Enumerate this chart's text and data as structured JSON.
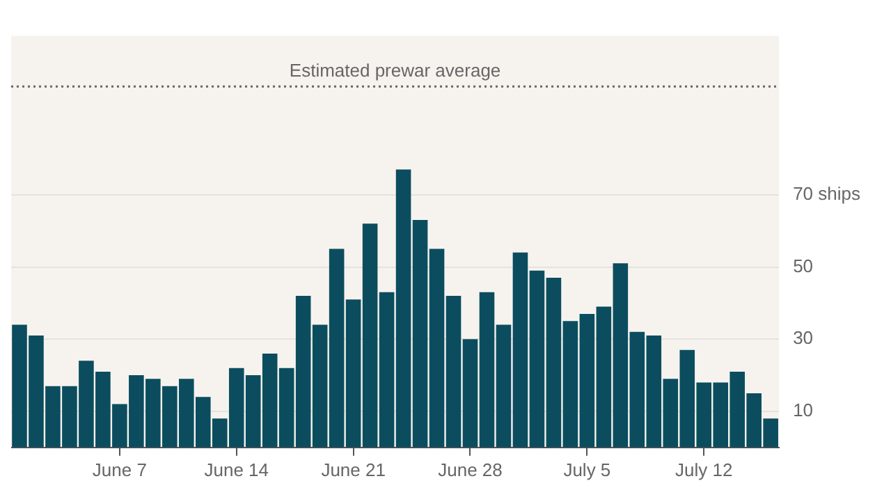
{
  "chart_data": {
    "type": "bar",
    "categories": [
      null,
      null,
      null,
      null,
      null,
      null,
      "June 7",
      null,
      null,
      null,
      null,
      null,
      null,
      "June 14",
      null,
      null,
      null,
      null,
      null,
      null,
      "June 21",
      null,
      null,
      null,
      null,
      null,
      null,
      "June 28",
      null,
      null,
      null,
      null,
      null,
      null,
      "July 5",
      null,
      null,
      null,
      null,
      null,
      null,
      "July 12",
      null,
      null,
      null,
      null
    ],
    "values": [
      34,
      31,
      17,
      17,
      24,
      21,
      12,
      20,
      19,
      17,
      19,
      14,
      8,
      22,
      20,
      26,
      22,
      42,
      34,
      55,
      41,
      62,
      43,
      77,
      63,
      55,
      42,
      30,
      43,
      34,
      54,
      49,
      47,
      35,
      37,
      39,
      51,
      32,
      31,
      19,
      27,
      18,
      18,
      21,
      15,
      8
    ],
    "color": "#0b4d5e",
    "ylim": [
      0,
      114
    ],
    "yticks": [
      10,
      30,
      50,
      {
        "value": 70,
        "label": "70 ships"
      }
    ],
    "grid": "y",
    "legend": false,
    "ref_lines": [
      {
        "axis": "y",
        "value": 100,
        "label": "Estimated prewar average",
        "color": "#666666",
        "line_style": "dotted"
      }
    ]
  }
}
